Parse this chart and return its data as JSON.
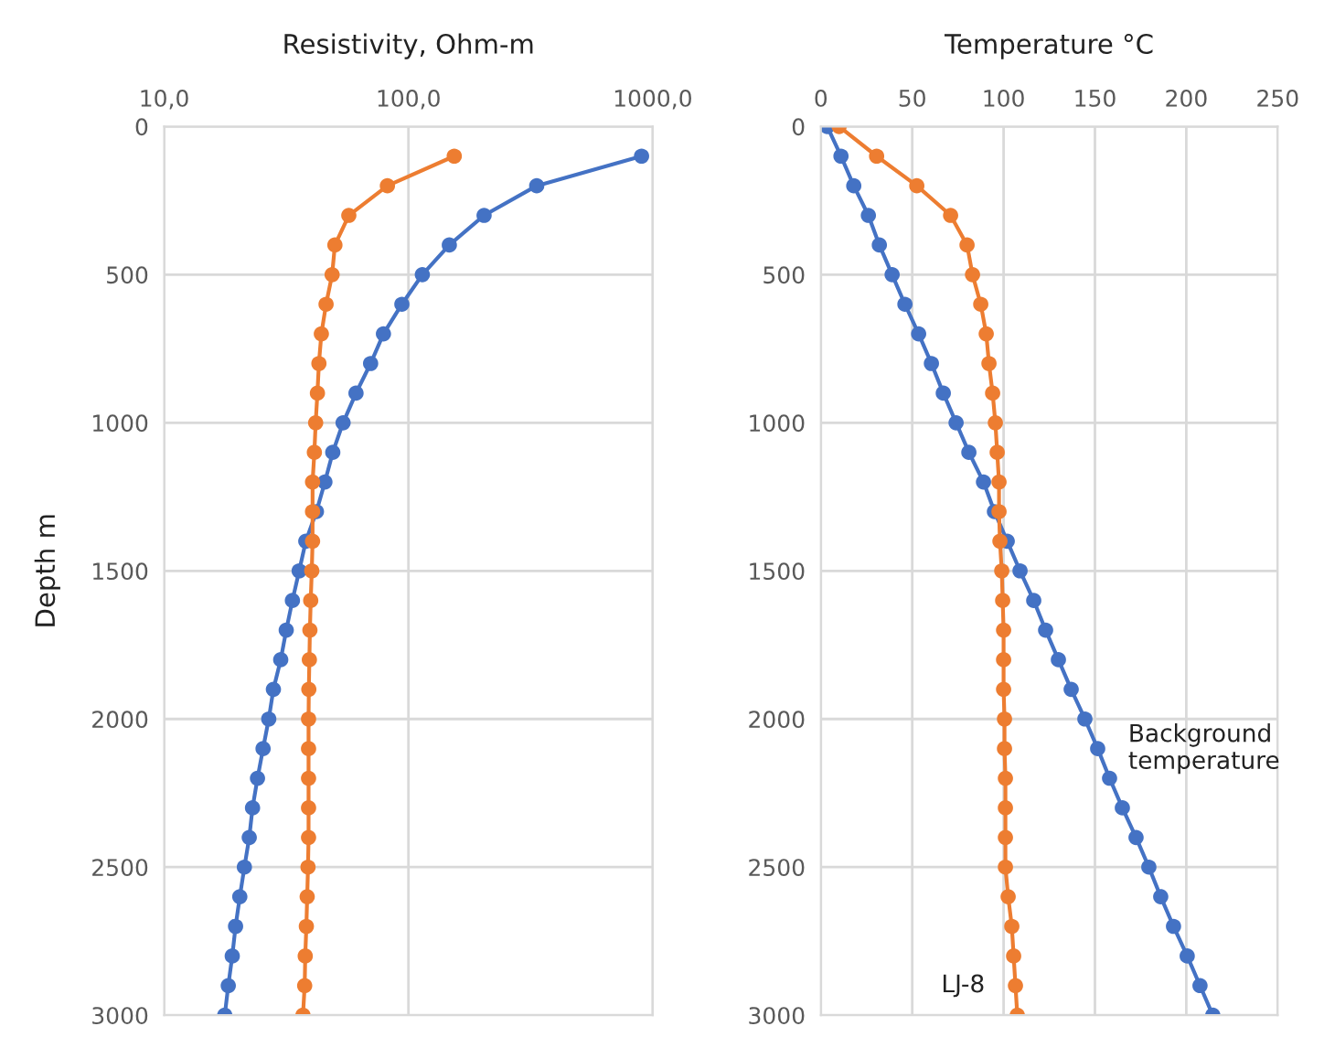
{
  "chart_data": [
    {
      "type": "line",
      "xlabel": "Resistivity, Ohm-m",
      "ylabel": "Depth m",
      "log": "x",
      "xlim": [
        10,
        1000
      ],
      "xticks": [
        {
          "value": 10,
          "label": "10,0"
        },
        {
          "value": 100,
          "label": "100,0"
        },
        {
          "value": 1000,
          "label": "1000,0"
        }
      ],
      "ylim": [
        3000,
        0
      ],
      "yticks": [
        0,
        500,
        1000,
        1500,
        2000,
        2500,
        3000
      ],
      "grid": true,
      "marker": "circle",
      "line_style": "solid",
      "legend": false,
      "series": [
        {
          "color": "#4472c4",
          "x": [
            900,
            335,
            204,
            147,
            114,
            94,
            79,
            70,
            61,
            54,
            49,
            45.5,
            42,
            38,
            35.7,
            33.5,
            31.6,
            30,
            28,
            26.8,
            25.4,
            24.1,
            23,
            22.3,
            21.3,
            20.4,
            19.6,
            19,
            18.3,
            17.7
          ],
          "values": [
            100,
            200,
            300,
            400,
            500,
            600,
            700,
            800,
            900,
            1000,
            1100,
            1200,
            1300,
            1400,
            1500,
            1600,
            1700,
            1800,
            1900,
            2000,
            2100,
            2200,
            2300,
            2400,
            2500,
            2600,
            2700,
            2800,
            2900,
            3000
          ]
        },
        {
          "color": "#ed7d31",
          "x": [
            154,
            82,
            57,
            50,
            48.7,
            46,
            44,
            43,
            42.4,
            41.7,
            41.2,
            40.5,
            40.5,
            40.5,
            40.2,
            39.8,
            39.5,
            39.3,
            39.1,
            39,
            39,
            39,
            39,
            39,
            38.8,
            38.5,
            38.2,
            37.8,
            37.6,
            37
          ],
          "values": [
            100,
            200,
            300,
            400,
            500,
            600,
            700,
            800,
            900,
            1000,
            1100,
            1200,
            1300,
            1400,
            1500,
            1600,
            1700,
            1800,
            1900,
            2000,
            2100,
            2200,
            2300,
            2400,
            2500,
            2600,
            2700,
            2800,
            2900,
            3000
          ]
        }
      ]
    },
    {
      "type": "line",
      "xlabel": "Temperature °C",
      "xlim": [
        0,
        250
      ],
      "xticks": [
        0,
        50,
        100,
        150,
        200,
        250
      ],
      "ylim": [
        3000,
        0
      ],
      "yticks": [
        0,
        500,
        1000,
        1500,
        2000,
        2500,
        3000
      ],
      "grid": true,
      "marker": "circle",
      "line_style": "solid",
      "legend": false,
      "series": [
        {
          "name": "Background temperature",
          "color": "#4472c4",
          "x": [
            3.5,
            11,
            18,
            26,
            32,
            39,
            46,
            53.5,
            60.5,
            67,
            74,
            81,
            89,
            95,
            102,
            109,
            116.5,
            123,
            130,
            137,
            144.5,
            151.5,
            158,
            165,
            172.5,
            179.5,
            186,
            193,
            200.5,
            207.5,
            214.5
          ],
          "values": [
            0,
            100,
            200,
            300,
            400,
            500,
            600,
            700,
            800,
            900,
            1000,
            1100,
            1200,
            1300,
            1400,
            1500,
            1600,
            1700,
            1800,
            1900,
            2000,
            2100,
            2200,
            2300,
            2400,
            2500,
            2600,
            2700,
            2800,
            2900,
            3000
          ]
        },
        {
          "name": "LJ-8",
          "color": "#ed7d31",
          "x": [
            10,
            30.5,
            52.5,
            71,
            80,
            83,
            87.5,
            90.5,
            92,
            94,
            95.5,
            96.5,
            97.5,
            97.5,
            98,
            99,
            99.5,
            100,
            100,
            100,
            100.5,
            100.5,
            101,
            101,
            101,
            101,
            102.5,
            104.5,
            105.5,
            106.5,
            107.5
          ],
          "values": [
            0,
            100,
            200,
            300,
            400,
            500,
            600,
            700,
            800,
            900,
            1000,
            1100,
            1200,
            1300,
            1400,
            1500,
            1600,
            1700,
            1800,
            1900,
            2000,
            2100,
            2200,
            2300,
            2400,
            2500,
            2600,
            2700,
            2800,
            2900,
            3000
          ]
        }
      ]
    }
  ]
}
